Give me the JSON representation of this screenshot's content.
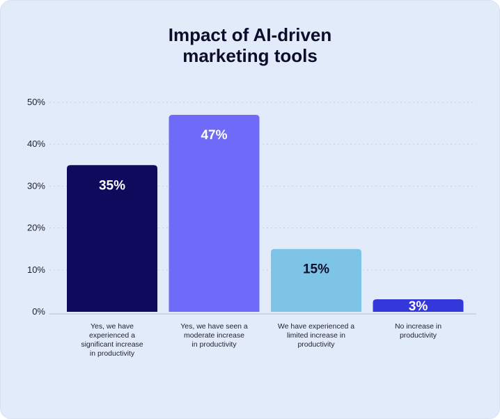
{
  "chart_data": {
    "type": "bar",
    "title": "Impact of AI-driven\nmarketing tools",
    "categories": [
      "Yes, we have experienced a significant increase in productivity",
      "Yes, we have seen a moderate increase in productivity",
      "We have experienced a limited increase in productivity",
      "No increase in productivity"
    ],
    "category_lines": [
      [
        "Yes, we have",
        "experienced a",
        "significant increase",
        "in productivity"
      ],
      [
        "Yes, we have seen a",
        "moderate increase",
        "in productivity"
      ],
      [
        "We have experienced a",
        "limited increase in",
        "productivity"
      ],
      [
        "No increase in",
        "productivity"
      ]
    ],
    "values": [
      35,
      47,
      15,
      3
    ],
    "value_labels": [
      "35%",
      "47%",
      "15%",
      "3%"
    ],
    "bar_colors": [
      "#0f0a5c",
      "#6f6af8",
      "#7ec4e6",
      "#3437d9"
    ],
    "value_label_colors": [
      "#ffffff",
      "#ffffff",
      "#0d0d2b",
      "#ffffff"
    ],
    "ylim": [
      0,
      50
    ],
    "yticks": [
      0,
      10,
      20,
      30,
      40,
      50
    ],
    "ytick_labels": [
      "0%",
      "10%",
      "20%",
      "30%",
      "40%",
      "50%"
    ],
    "xlabel": "",
    "ylabel": "",
    "grid": true,
    "legend": "none"
  }
}
